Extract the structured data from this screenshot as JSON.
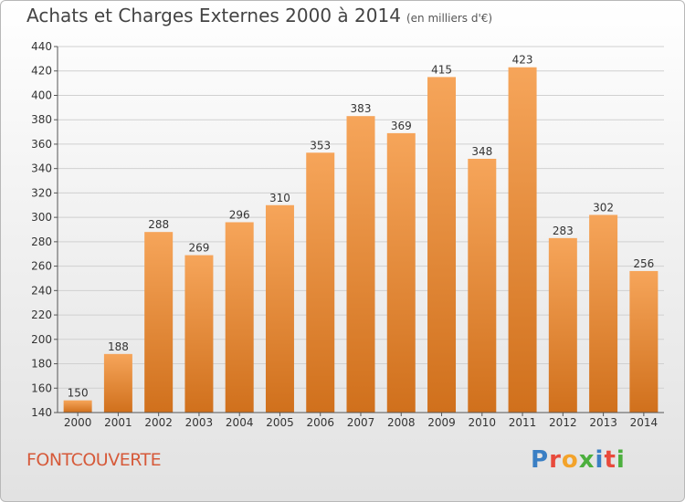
{
  "header": {
    "title": "Achats et Charges Externes 2000 à 2014",
    "subtitle": "(en milliers d'€)"
  },
  "footer": {
    "town": "FONTCOUVERTE",
    "logo": {
      "letters": [
        "P",
        "r",
        "o",
        "x",
        "i",
        "t",
        "i"
      ],
      "colors": [
        "#3a7fc4",
        "#e84a3c",
        "#f3a32a",
        "#4caf3e",
        "#3a7fc4",
        "#e84a3c",
        "#4caf3e"
      ]
    }
  },
  "colors": {
    "bar_top": "#f6a55a",
    "bar_bottom": "#d0701c",
    "grid": "#d0d0d0",
    "axis": "#555555"
  },
  "chart_data": {
    "type": "bar",
    "categories": [
      "2000",
      "2001",
      "2002",
      "2003",
      "2004",
      "2005",
      "2006",
      "2007",
      "2008",
      "2009",
      "2010",
      "2011",
      "2012",
      "2013",
      "2014"
    ],
    "values": [
      150,
      188,
      288,
      269,
      296,
      310,
      353,
      383,
      369,
      415,
      348,
      423,
      283,
      302,
      256
    ],
    "ylim": [
      140,
      440
    ],
    "yticks": [
      140,
      160,
      180,
      200,
      220,
      240,
      260,
      280,
      300,
      320,
      340,
      360,
      380,
      400,
      420,
      440
    ],
    "grid": true
  }
}
